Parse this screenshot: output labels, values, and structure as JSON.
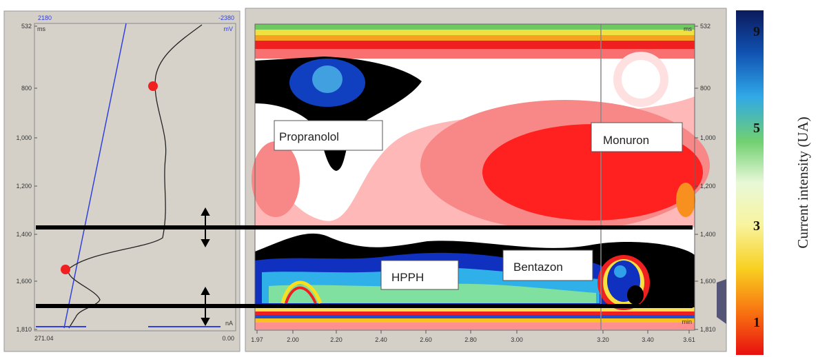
{
  "left_panel": {
    "top_left": "2180",
    "top_right": "-2380",
    "y_unit": "ms",
    "top_unit": "mV",
    "yticks": [
      "532",
      "800",
      "1,000",
      "1,200",
      "1,400",
      "1,600",
      "1,810"
    ],
    "bottom_left": "271.04",
    "bottom_right": "0.00",
    "bottom_unit": "nA"
  },
  "right_panel": {
    "y_unit": "ms",
    "x_unit": "min",
    "yticks": [
      "532",
      "800",
      "1,000",
      "1,200",
      "1,400",
      "1,600",
      "1,810"
    ],
    "xticks": [
      "1.97",
      "2.00",
      "2.20",
      "2.40",
      "2.60",
      "2.80",
      "3.00",
      "3.20",
      "3.40",
      "3.61"
    ]
  },
  "annotations": [
    "Propranolol",
    "Monuron",
    "HPPH",
    "Bentazon"
  ],
  "colorbar": {
    "ticks": [
      "9",
      "5",
      "3",
      "1"
    ],
    "label": "Current intensity (UA)"
  }
}
